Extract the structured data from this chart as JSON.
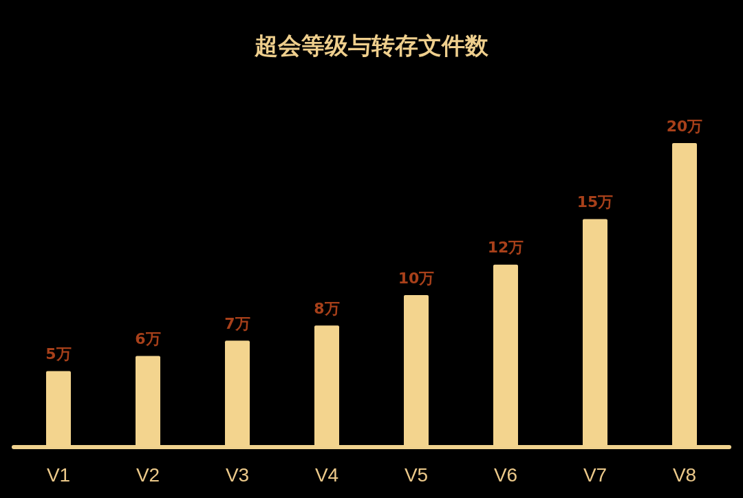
{
  "chart_data": {
    "type": "bar",
    "title": "超会等级与转存文件数",
    "categories": [
      "V1",
      "V2",
      "V3",
      "V4",
      "V5",
      "V6",
      "V7",
      "V8"
    ],
    "values": [
      5,
      6,
      7,
      8,
      10,
      12,
      15,
      20
    ],
    "value_labels": [
      "5万",
      "6万",
      "7万",
      "8万",
      "10万",
      "12万",
      "15万",
      "20万"
    ],
    "color": "#f3d48e",
    "tick_labels": "x"
  }
}
